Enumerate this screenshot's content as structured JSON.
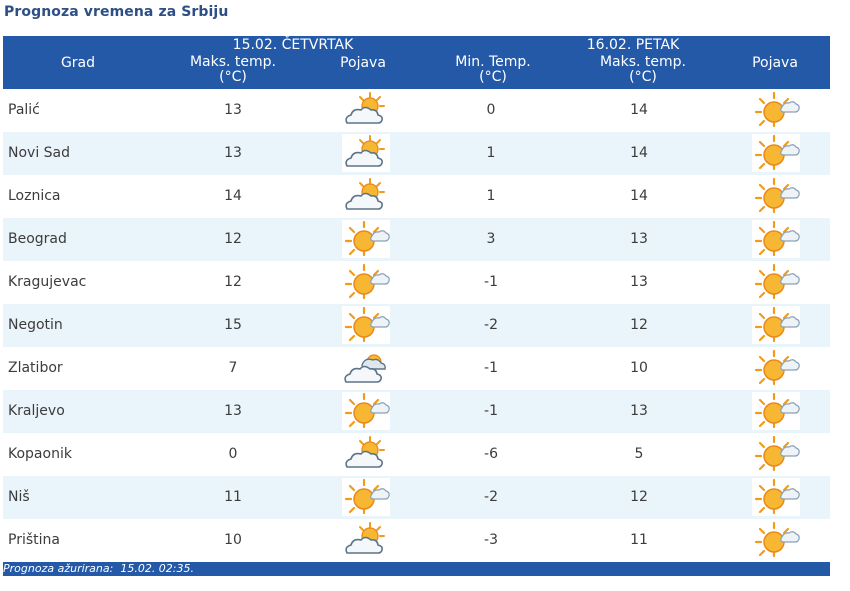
{
  "title": "Prognoza vremena za Srbiju",
  "header": {
    "grad": "Grad",
    "day1": "15.02. ČETVRTAK",
    "day2": "16.02. PETAK",
    "max_temp": "Maks. temp.",
    "unit": "(°C)",
    "min_temp": "Min. Temp.",
    "pojava": "Pojava"
  },
  "rows": [
    {
      "city": "Palić",
      "d1_max": "13",
      "d1_icon": "partly-cloudy-icon",
      "min": "0",
      "d2_max": "14",
      "d2_icon": "sun-cloud-icon"
    },
    {
      "city": "Novi Sad",
      "d1_max": "13",
      "d1_icon": "partly-cloudy-icon",
      "min": "1",
      "d2_max": "14",
      "d2_icon": "sun-cloud-icon"
    },
    {
      "city": "Loznica",
      "d1_max": "14",
      "d1_icon": "partly-cloudy-icon",
      "min": "1",
      "d2_max": "14",
      "d2_icon": "sun-cloud-icon"
    },
    {
      "city": "Beograd",
      "d1_max": "12",
      "d1_icon": "sun-cloud-icon",
      "min": "3",
      "d2_max": "13",
      "d2_icon": "sun-cloud-icon"
    },
    {
      "city": "Kragujevac",
      "d1_max": "12",
      "d1_icon": "sun-cloud-icon",
      "min": "-1",
      "d2_max": "13",
      "d2_icon": "sun-cloud-icon"
    },
    {
      "city": "Negotin",
      "d1_max": "15",
      "d1_icon": "sun-cloud-icon",
      "min": "-2",
      "d2_max": "12",
      "d2_icon": "sun-cloud-icon"
    },
    {
      "city": "Zlatibor",
      "d1_max": "7",
      "d1_icon": "cloudy-icon",
      "min": "-1",
      "d2_max": "10",
      "d2_icon": "sun-cloud-icon"
    },
    {
      "city": "Kraljevo",
      "d1_max": "13",
      "d1_icon": "sun-cloud-icon",
      "min": "-1",
      "d2_max": "13",
      "d2_icon": "sun-cloud-icon"
    },
    {
      "city": "Kopaonik",
      "d1_max": "0",
      "d1_icon": "partly-cloudy-icon",
      "min": "-6",
      "d2_max": "5",
      "d2_icon": "sun-cloud-icon"
    },
    {
      "city": "Niš",
      "d1_max": "11",
      "d1_icon": "sun-cloud-icon",
      "min": "-2",
      "d2_max": "12",
      "d2_icon": "sun-cloud-icon"
    },
    {
      "city": "Priština",
      "d1_max": "10",
      "d1_icon": "partly-cloudy-icon",
      "min": "-3",
      "d2_max": "11",
      "d2_icon": "sun-cloud-icon"
    }
  ],
  "footer": {
    "label": "Prognoza ažurirana:",
    "value": "15.02. 02:35."
  },
  "colors": {
    "header_bg": "#2459a8",
    "alt_row": "#eaf4fb",
    "title": "#2d4f86",
    "sun": "#f5a623"
  }
}
